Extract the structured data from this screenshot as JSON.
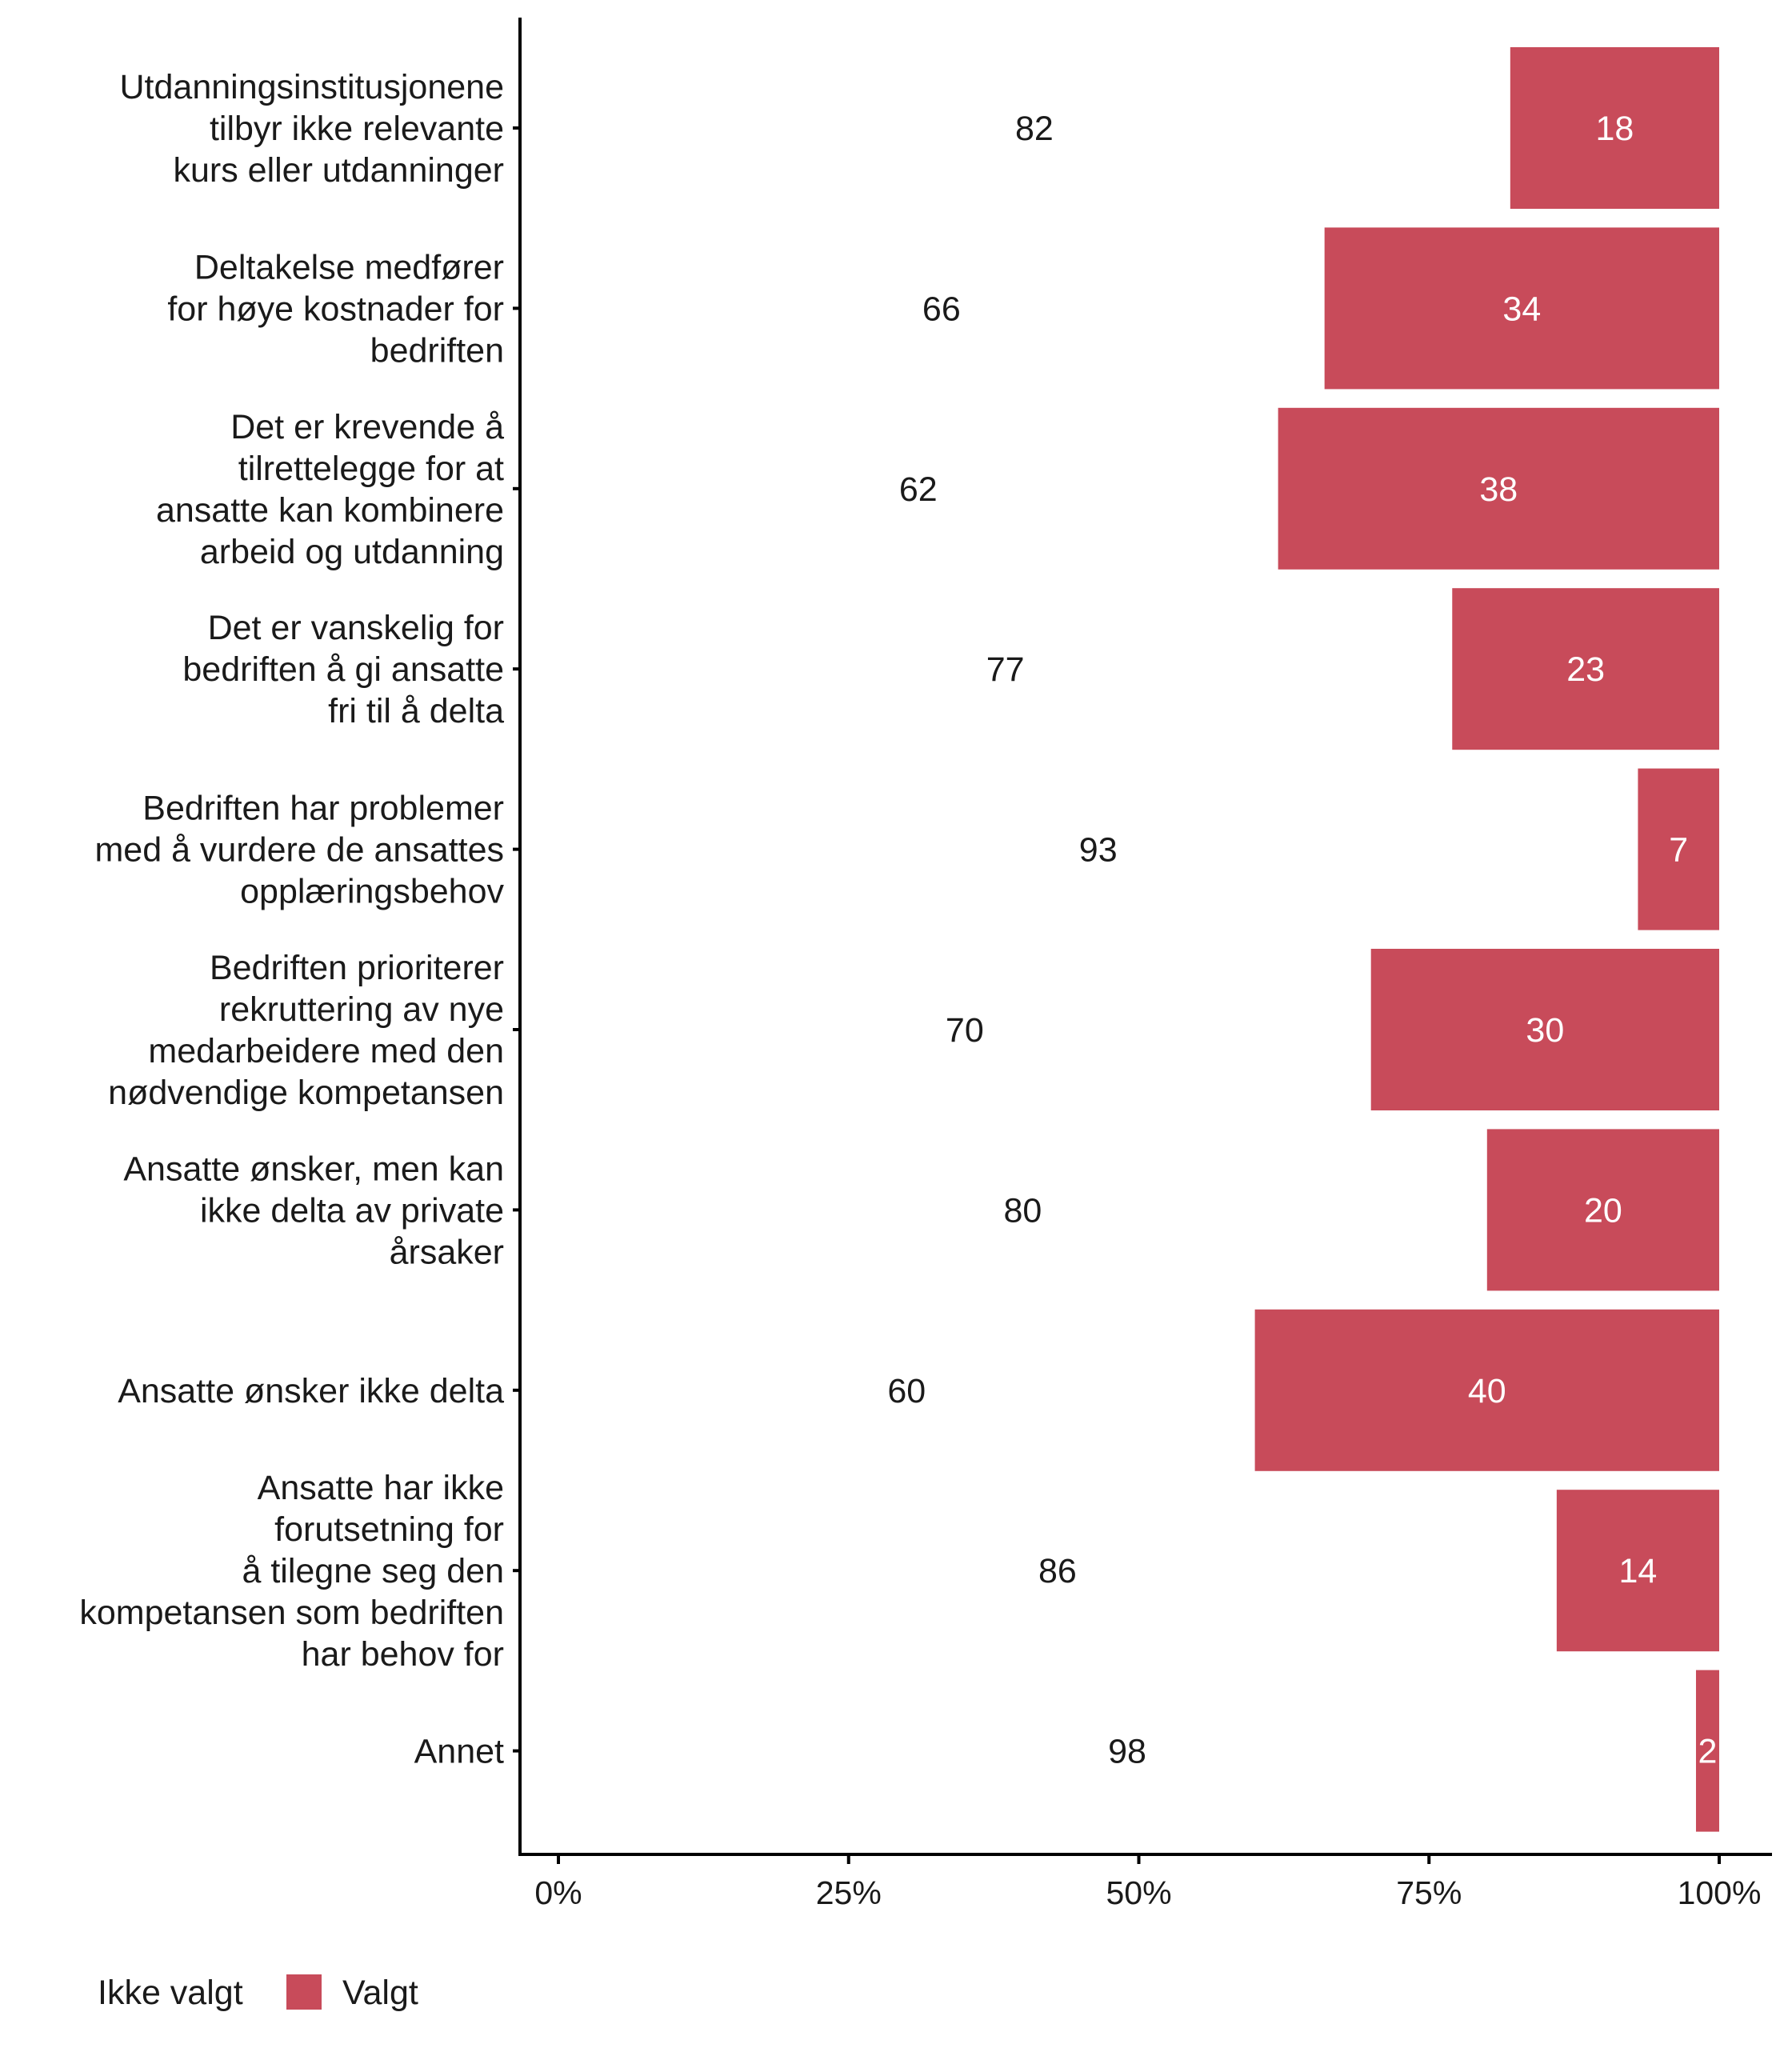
{
  "chart_data": {
    "type": "bar",
    "orientation": "horizontal",
    "stacked": true,
    "categories": [
      [
        "Utdanningsinstitusjonene",
        "tilbyr ikke relevante",
        "kurs eller utdanninger"
      ],
      [
        "Deltakelse medfører",
        "for høye kostnader for",
        "bedriften"
      ],
      [
        "Det er krevende å",
        "tilrettelegge for at",
        "ansatte kan kombinere",
        "arbeid og utdanning"
      ],
      [
        "Det er vanskelig for",
        "bedriften å gi ansatte",
        "fri til å delta"
      ],
      [
        "Bedriften har problemer",
        "med å vurdere de ansattes",
        "opplæringsbehov"
      ],
      [
        "Bedriften prioriterer",
        "rekruttering av nye",
        "medarbeidere med den",
        "nødvendige kompetansen"
      ],
      [
        "Ansatte ønsker, men kan",
        "ikke delta av private",
        "årsaker"
      ],
      [
        "Ansatte ønsker ikke delta"
      ],
      [
        "Ansatte har ikke",
        "forutsetning for",
        "å tilegne seg den",
        "kompetansen som bedriften",
        "har behov for"
      ],
      [
        "Annet"
      ]
    ],
    "series": [
      {
        "name": "Ikke valgt",
        "color": "#ffffff",
        "values": [
          82,
          66,
          62,
          77,
          93,
          70,
          80,
          60,
          86,
          98
        ]
      },
      {
        "name": "Valgt",
        "color": "#c84b5a",
        "values": [
          18,
          34,
          38,
          23,
          7,
          30,
          20,
          40,
          14,
          2
        ]
      }
    ],
    "value_labels_outside": [
      "82",
      "66",
      "62",
      "77",
      "93",
      "70",
      "80",
      "60",
      "86",
      "98"
    ],
    "value_labels_inside": [
      "18",
      "34",
      "38",
      "23",
      "7",
      "30",
      "20",
      "40",
      "14",
      "2"
    ],
    "xlim": [
      0,
      100
    ],
    "x_ticks": [
      0,
      25,
      50,
      75,
      100
    ],
    "x_tick_labels": [
      "0%",
      "25%",
      "50%",
      "75%",
      "100%"
    ],
    "title": "",
    "xlabel": "",
    "ylabel": "",
    "grid": false,
    "legend": {
      "position": "bottom-left",
      "entries": [
        "Ikke valgt",
        "Valgt"
      ]
    }
  }
}
